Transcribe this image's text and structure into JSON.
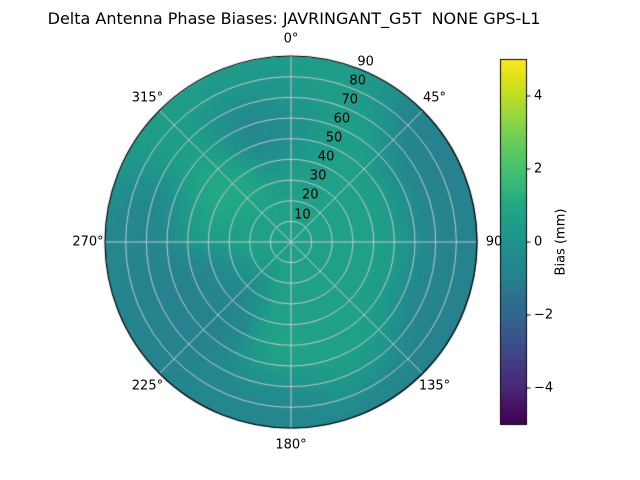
{
  "title": "Delta Antenna Phase Biases: JAVRINGANT_G5T  NONE GPS-L1",
  "colorbar": {
    "label": "Bias (mm)",
    "tick_labels": [
      "4",
      "2",
      "0",
      "−2",
      "−4"
    ],
    "tick_values": [
      4,
      2,
      0,
      -2,
      -4
    ],
    "vmin": -5,
    "vmax": 5,
    "colormap": "viridis"
  },
  "chart_data": {
    "type": "heatmap",
    "projection": "polar",
    "title": "Delta Antenna Phase Biases: JAVRINGANT_G5T  NONE GPS-L1",
    "colormap": "viridis",
    "vmin": -5,
    "vmax": 5,
    "units": "mm",
    "theta_tick_labels": [
      "0°",
      "45°",
      "90",
      "135°",
      "180°",
      "225°",
      "270°",
      "315°"
    ],
    "theta_tick_angles_deg": [
      0,
      45,
      90,
      135,
      180,
      225,
      270,
      315
    ],
    "radial_tick_labels": [
      "10",
      "20",
      "30",
      "40",
      "50",
      "60",
      "70",
      "80",
      "90"
    ],
    "radial_ticks": [
      10,
      20,
      30,
      40,
      50,
      60,
      70,
      80,
      90
    ],
    "rmax": 90,
    "azimuth_deg": [
      0,
      10,
      20,
      30,
      40,
      50,
      60,
      70,
      80,
      90,
      100,
      110,
      120,
      130,
      140,
      150,
      160,
      170,
      180,
      190,
      200,
      210,
      220,
      230,
      240,
      250,
      260,
      270,
      280,
      290,
      300,
      310,
      320,
      330,
      340,
      350
    ],
    "zenith_deg": [
      0,
      10,
      20,
      30,
      40,
      50,
      60,
      70,
      80,
      90
    ],
    "values_mm": [
      [
        0.6,
        0.6,
        0.6,
        0.6,
        0.6,
        0.6,
        0.6,
        0.6,
        0.6,
        0.6,
        0.6,
        0.6,
        0.6,
        0.6,
        0.6,
        0.6,
        0.6,
        0.6,
        0.6,
        0.6,
        0.6,
        0.6,
        0.6,
        0.6,
        0.6,
        0.6,
        0.6,
        0.6,
        0.6,
        0.6,
        0.6,
        0.6,
        0.6,
        0.6,
        0.6,
        0.6
      ],
      [
        0.6,
        0.6,
        0.6,
        0.6,
        0.6,
        0.6,
        0.6,
        0.6,
        0.6,
        0.6,
        0.6,
        0.6,
        0.6,
        0.6,
        0.6,
        0.6,
        0.6,
        0.6,
        0.6,
        0.6,
        0.6,
        0.6,
        0.6,
        0.6,
        0.6,
        0.6,
        0.6,
        0.6,
        0.6,
        0.6,
        0.6,
        0.6,
        0.6,
        0.6,
        0.6,
        0.6
      ],
      [
        0.6,
        0.6,
        0.6,
        0.6,
        0.6,
        0.6,
        0.6,
        0.6,
        0.6,
        0.6,
        0.6,
        0.6,
        0.6,
        0.6,
        0.6,
        0.6,
        0.6,
        0.6,
        0.6,
        0.6,
        0.6,
        0.1,
        0.1,
        0.1,
        0.6,
        0.6,
        0.6,
        0.6,
        0.6,
        0.6,
        0.6,
        0.6,
        0.6,
        0.6,
        0.6,
        0.6
      ],
      [
        0.6,
        0.6,
        0.6,
        0.6,
        0.6,
        0.6,
        0.6,
        0.6,
        0.6,
        0.6,
        0.6,
        0.6,
        0.6,
        0.6,
        0.6,
        0.6,
        0.6,
        0.6,
        0.6,
        0.6,
        0.6,
        -0.4,
        -0.4,
        -0.4,
        -0.4,
        -0.4,
        0.6,
        0.6,
        0.6,
        0.6,
        1.0,
        1.0,
        1.0,
        1.0,
        0.6,
        0.6
      ],
      [
        0.3,
        0.3,
        0.6,
        0.6,
        0.6,
        0.6,
        0.6,
        0.6,
        0.6,
        0.6,
        0.6,
        0.6,
        0.6,
        0.6,
        0.6,
        0.6,
        0.6,
        0.6,
        0.6,
        0.6,
        0.6,
        -0.7,
        -0.7,
        -0.7,
        -0.7,
        -0.7,
        -0.7,
        0.6,
        0.6,
        1.1,
        1.1,
        1.1,
        1.1,
        1.1,
        -0.3,
        -0.3
      ],
      [
        0.0,
        0.0,
        0.6,
        0.6,
        0.6,
        0.6,
        0.6,
        0.6,
        0.6,
        0.6,
        0.6,
        0.6,
        0.6,
        0.6,
        0.6,
        0.6,
        0.6,
        0.9,
        0.9,
        0.9,
        0.6,
        -0.9,
        -0.9,
        -0.9,
        -0.9,
        -0.9,
        -0.9,
        0.6,
        0.6,
        1.0,
        1.0,
        1.0,
        1.0,
        -0.7,
        -0.7,
        -0.7
      ],
      [
        -0.3,
        -0.3,
        0.6,
        0.6,
        0.6,
        -0.5,
        -0.5,
        -0.5,
        -0.5,
        -0.5,
        -0.5,
        -0.5,
        -0.5,
        0.6,
        0.6,
        0.6,
        0.6,
        0.8,
        0.8,
        0.8,
        0.6,
        -1.0,
        -1.0,
        -1.0,
        -1.0,
        -1.0,
        -1.0,
        -0.6,
        -0.6,
        -0.6,
        0.6,
        0.6,
        0.6,
        -0.6,
        -0.6,
        -0.6
      ],
      [
        0.5,
        0.5,
        0.5,
        0.5,
        0.5,
        -0.9,
        -0.9,
        -0.9,
        -0.9,
        -0.9,
        -0.9,
        -0.9,
        -0.9,
        -0.9,
        0.5,
        0.5,
        0.5,
        -0.4,
        -0.4,
        -0.4,
        -0.4,
        -0.4,
        -1.0,
        -1.0,
        -1.0,
        -1.0,
        -1.0,
        -0.8,
        -0.8,
        -0.8,
        0.5,
        0.5,
        0.5,
        -0.4,
        -0.4,
        -0.4
      ],
      [
        0.3,
        0.3,
        0.5,
        0.5,
        -1.0,
        -1.0,
        -1.0,
        -1.0,
        -1.0,
        -1.0,
        -1.0,
        -1.0,
        -1.0,
        -1.0,
        -0.8,
        -0.8,
        0.5,
        -0.6,
        -0.6,
        -0.6,
        -0.6,
        -0.6,
        -0.9,
        -0.9,
        -0.9,
        -0.9,
        -0.9,
        -0.7,
        -0.7,
        -0.7,
        0.5,
        0.5,
        0.5,
        0.5,
        0.3,
        0.3
      ],
      [
        0.4,
        0.4,
        0.4,
        0.4,
        -1.0,
        -1.0,
        -1.0,
        -1.0,
        -1.0,
        -1.0,
        -1.0,
        -1.0,
        -1.0,
        -1.0,
        -0.9,
        -0.9,
        -0.7,
        -0.7,
        -0.7,
        -0.7,
        -0.7,
        -0.7,
        -0.8,
        -0.8,
        -0.8,
        -0.8,
        -0.5,
        -0.5,
        -0.5,
        0.4,
        0.4,
        0.4,
        0.4,
        0.4,
        0.4,
        0.4
      ]
    ]
  }
}
